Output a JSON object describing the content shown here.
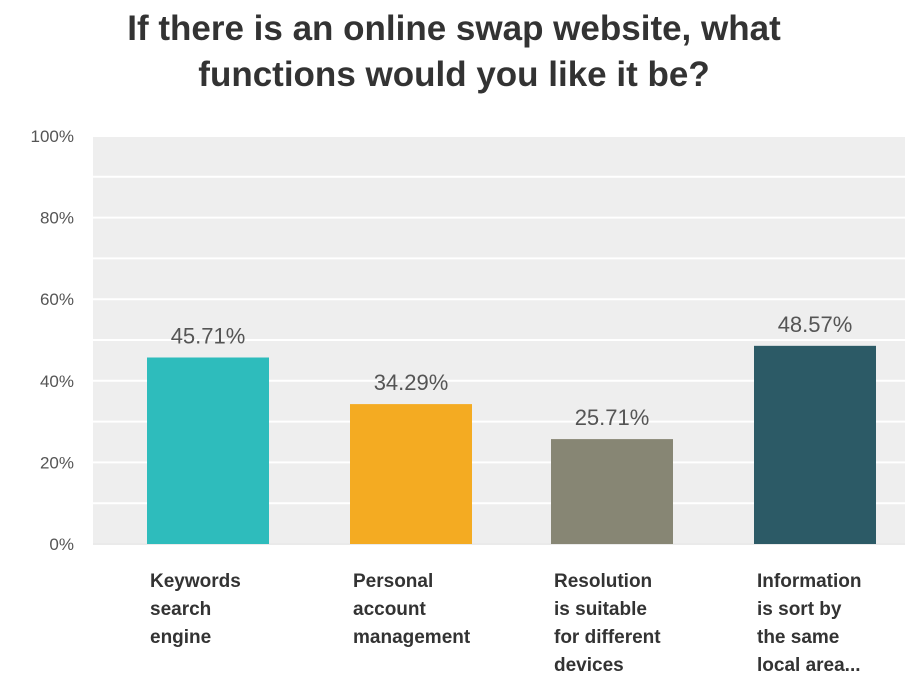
{
  "chart_data": {
    "type": "bar",
    "title_lines": [
      "If there is an online swap website, what",
      "functions would you like it be?"
    ],
    "categories": [
      [
        "Keywords",
        "search",
        "engine"
      ],
      [
        "Personal",
        "account",
        "management"
      ],
      [
        "Resolution",
        "is suitable",
        "for different",
        "devices"
      ],
      [
        "Information",
        "is sort by",
        "the same",
        "local area..."
      ]
    ],
    "values": [
      45.71,
      34.29,
      25.71,
      48.57
    ],
    "value_labels": [
      "45.71%",
      "34.29%",
      "25.71%",
      "48.57%"
    ],
    "bar_colors": [
      "#2ebcbc",
      "#f4ab22",
      "#878674",
      "#2c5a66"
    ],
    "ylim": [
      0,
      100
    ],
    "yticks": [
      "0%",
      "20%",
      "40%",
      "60%",
      "80%",
      "100%"
    ],
    "ytick_values": [
      0,
      20,
      40,
      60,
      80,
      100
    ],
    "grid": true,
    "plot_background": "#eeeeee",
    "gridline_color": "#ffffff",
    "title_color": "#333333"
  }
}
